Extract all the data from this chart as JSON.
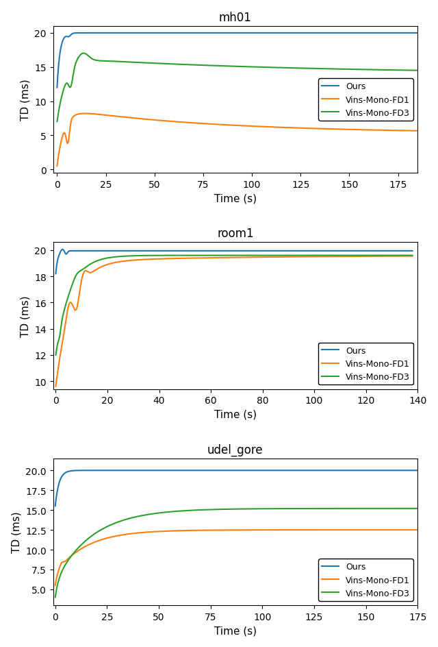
{
  "plots": [
    {
      "title": "mh01",
      "xlabel": "Time (s)",
      "ylabel": "TD (ms)",
      "xlim": [
        -2,
        185
      ],
      "ylim": [
        -0.5,
        21
      ],
      "xticks": [
        0,
        25,
        50,
        75,
        100,
        125,
        150,
        175
      ],
      "yticks": [
        0,
        5,
        10,
        15,
        20
      ],
      "legend_loc": "center right"
    },
    {
      "title": "room1",
      "xlabel": "Time (s)",
      "ylabel": "TD (ms)",
      "xlim": [
        -1,
        140
      ],
      "ylim": [
        9.4,
        20.6
      ],
      "xticks": [
        0,
        20,
        40,
        60,
        80,
        100,
        120,
        140
      ],
      "yticks": [
        10,
        12,
        14,
        16,
        18,
        20
      ],
      "legend_loc": "lower right"
    },
    {
      "title": "udel_gore",
      "xlabel": "Time (s)",
      "ylabel": "TD (ms)",
      "xlim": [
        -1,
        175
      ],
      "ylim": [
        3.0,
        21.5
      ],
      "xticks": [
        0,
        25,
        50,
        75,
        100,
        125,
        150,
        175
      ],
      "yticks": [
        5.0,
        7.5,
        10.0,
        12.5,
        15.0,
        17.5,
        20.0
      ],
      "legend_loc": "lower right"
    }
  ],
  "legend_labels": [
    "Ours",
    "Vins-Mono-FD1",
    "Vins-Mono-FD3"
  ],
  "line_colors": [
    "#1f77b4",
    "#ff7f0e",
    "#2ca02c"
  ],
  "line_width": 1.5
}
